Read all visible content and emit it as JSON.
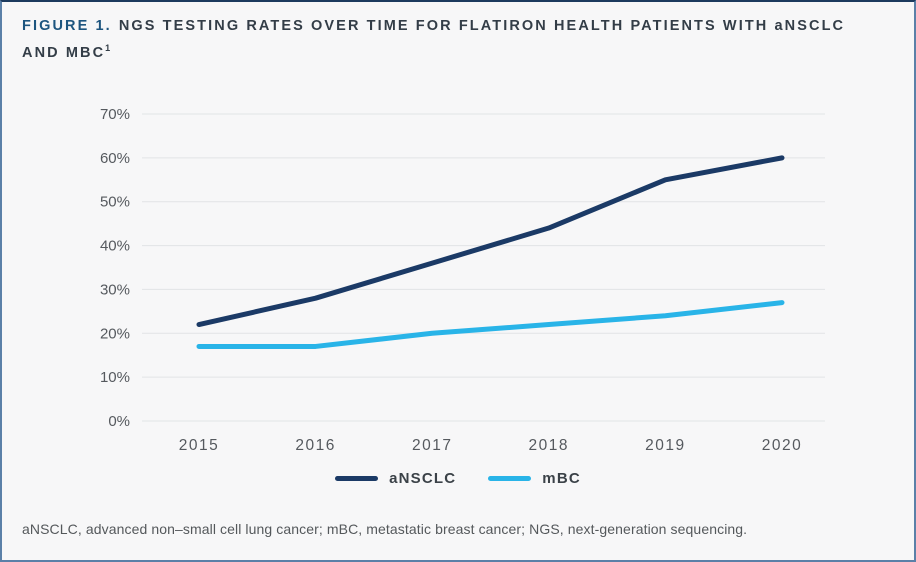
{
  "figure": {
    "title_label": "FIGURE 1.",
    "title_line1": "NGS TESTING RATES OVER TIME FOR FLATIRON HEALTH PATIENTS WITH aNSCLC",
    "title_line2": "AND MBC",
    "title_superscript": "1",
    "footnote": "aNSCLC, advanced non–small cell lung cancer; mBC, metastatic breast cancer; NGS, next-generation sequencing."
  },
  "colors": {
    "figure_number_blue": "#1d557f",
    "title_text": "#333d47",
    "ansclc_line": "#1b3a66",
    "mbc_line": "#29b4e8",
    "grid_line": "#e2e4e6",
    "axis_text": "#55595e",
    "background": "#f7f7f8",
    "border": "#5b80a8"
  },
  "chart_data": {
    "type": "line",
    "x": [
      "2015",
      "2016",
      "2017",
      "2018",
      "2019",
      "2020"
    ],
    "series": [
      {
        "name": "aNSCLC",
        "color": "#1b3a66",
        "values": [
          22,
          28,
          36,
          44,
          55,
          60
        ]
      },
      {
        "name": "mBC",
        "color": "#29b4e8",
        "values": [
          17,
          17,
          20,
          22,
          24,
          27
        ]
      }
    ],
    "title": "NGS testing rates over time for Flatiron Health patients with aNSCLC and mBC",
    "xlabel": "",
    "ylabel": "",
    "ylim": [
      0,
      70
    ],
    "ytick_step": 10,
    "ytick_suffix": "%",
    "grid": true,
    "legend_position": "bottom"
  }
}
